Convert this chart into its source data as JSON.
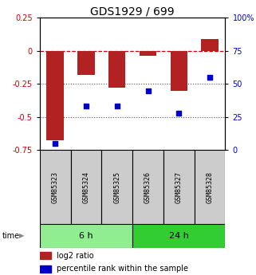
{
  "title": "GDS1929 / 699",
  "categories": [
    "GSM85323",
    "GSM85324",
    "GSM85325",
    "GSM85326",
    "GSM85327",
    "GSM85328"
  ],
  "log2_ratio": [
    -0.68,
    -0.18,
    -0.28,
    -0.04,
    -0.3,
    0.09
  ],
  "percentile_rank": [
    5,
    33,
    33,
    45,
    28,
    55
  ],
  "bar_color": "#B22222",
  "dot_color": "#0000CC",
  "ylim_left": [
    -0.75,
    0.25
  ],
  "ylim_right": [
    0,
    100
  ],
  "yticks_left": [
    0.25,
    0.0,
    -0.25,
    -0.5,
    -0.75
  ],
  "yticks_right": [
    100,
    75,
    50,
    25,
    0
  ],
  "time_groups": [
    {
      "label": "6 h",
      "start": 0,
      "end": 3,
      "color": "#90EE90"
    },
    {
      "label": "24 h",
      "start": 3,
      "end": 6,
      "color": "#32CD32"
    }
  ],
  "legend_log2": "log2 ratio",
  "legend_pct": "percentile rank within the sample",
  "time_label": "time",
  "bar_width": 0.55,
  "zero_line_color": "#CC0000",
  "dotted_line_color": "#555555",
  "bg_color": "#FFFFFF",
  "plot_bg": "#FFFFFF",
  "label_box_color": "#CCCCCC",
  "label_box_color_24h": "#BBBBBB"
}
